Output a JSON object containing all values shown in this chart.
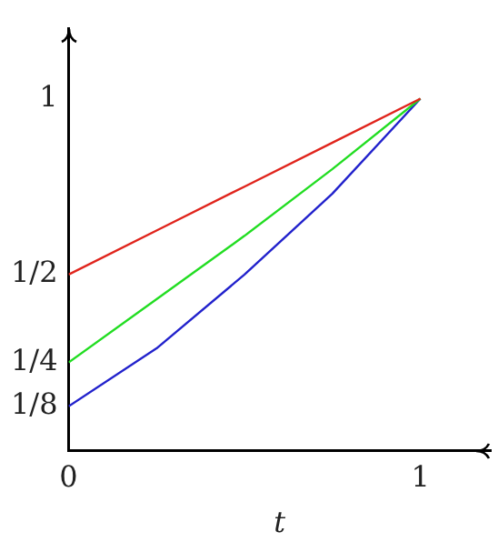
{
  "chart_data": {
    "type": "line",
    "xlabel": "t",
    "x": [
      0,
      0.25,
      0.5,
      0.75,
      1
    ],
    "series": [
      {
        "color": "#e0241c",
        "values": [
          0.5,
          0.625,
          0.75,
          0.875,
          1
        ]
      },
      {
        "color": "#22dd22",
        "values": [
          0.25,
          0.43,
          0.61,
          0.8,
          1
        ]
      },
      {
        "color": "#2222cc",
        "values": [
          0.125,
          0.29,
          0.5,
          0.73,
          1
        ]
      }
    ],
    "xlim": [
      0,
      1.2
    ],
    "ylim": [
      0,
      1.2
    ],
    "xticks": [
      0,
      1
    ],
    "yticks": [
      {
        "value": 0.125,
        "label": "1/8"
      },
      {
        "value": 0.25,
        "label": "1/4"
      },
      {
        "value": 0.5,
        "label": "1/2"
      },
      1
    ],
    "grid": false,
    "legend": false,
    "marker": "none",
    "line_style": "solid"
  }
}
